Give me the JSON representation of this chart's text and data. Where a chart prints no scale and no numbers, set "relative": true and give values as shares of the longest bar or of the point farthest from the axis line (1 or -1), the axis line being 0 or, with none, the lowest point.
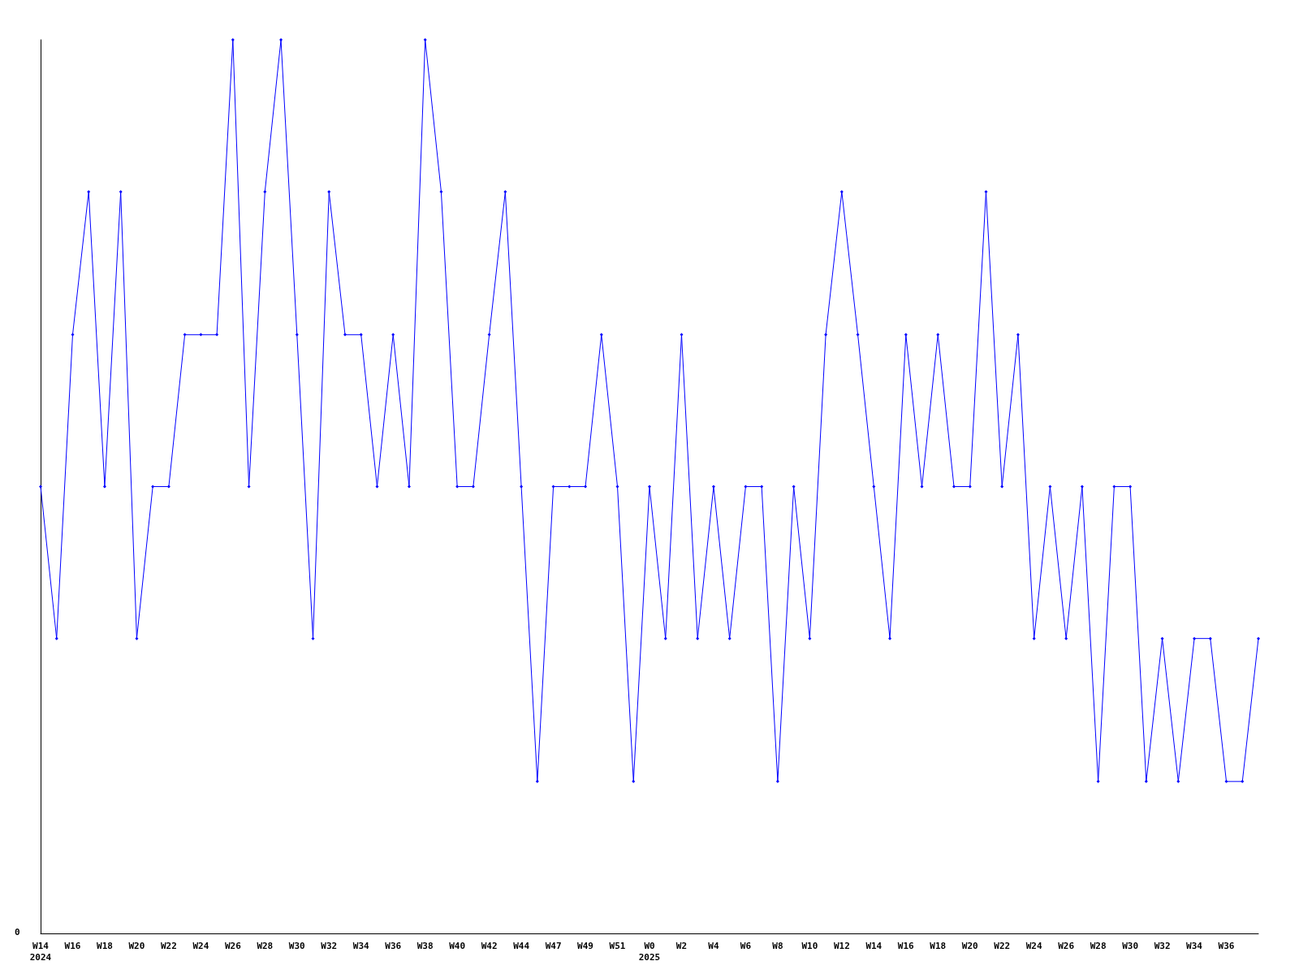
{
  "chart_data": {
    "type": "line",
    "relative": true,
    "marker": "diamond",
    "grid": false,
    "annotations": [
      "0"
    ],
    "categories": [
      "W14\n2024",
      null,
      "W16",
      null,
      "W18",
      null,
      "W20",
      null,
      "W22",
      null,
      "W24",
      null,
      "W26",
      null,
      "W28",
      null,
      "W30",
      null,
      "W32",
      null,
      "W34",
      null,
      "W36",
      null,
      "W38",
      null,
      "W40",
      null,
      "W42",
      null,
      "W44",
      null,
      "W47",
      null,
      "W49",
      null,
      "W51",
      null,
      "W0\n2025",
      null,
      "W2",
      null,
      "W4",
      null,
      "W6",
      null,
      "W8",
      null,
      "W10",
      null,
      "W12",
      null,
      "W14",
      null,
      "W16",
      null,
      "W18",
      null,
      "W20",
      null,
      "W22",
      null,
      "W24",
      null,
      "W26",
      null,
      "W28",
      null,
      "W30",
      null,
      "W32",
      null,
      "W34",
      null,
      "W36",
      null,
      null
    ],
    "series": [
      {
        "color": "#0000ff",
        "values": [
          0.5,
          0.33,
          0.67,
          0.83,
          0.5,
          0.83,
          0.33,
          0.5,
          0.5,
          0.67,
          0.67,
          0.67,
          1,
          0.5,
          0.83,
          1,
          0.67,
          0.33,
          0.83,
          0.67,
          0.67,
          0.5,
          0.67,
          0.5,
          1,
          0.83,
          0.5,
          0.5,
          0.67,
          0.83,
          0.5,
          0.17,
          0.5,
          0.5,
          0.5,
          0.67,
          0.5,
          0.17,
          0.5,
          0.33,
          0.67,
          0.33,
          0.5,
          0.33,
          0.5,
          0.5,
          0.17,
          0.5,
          0.33,
          0.67,
          0.83,
          0.67,
          0.5,
          0.33,
          0.67,
          0.5,
          0.67,
          0.5,
          0.5,
          0.83,
          0.5,
          0.67,
          0.33,
          0.5,
          0.33,
          0.5,
          0.17,
          0.5,
          0.5,
          0.17,
          0.33,
          0.17,
          0.33,
          0.33,
          0.17,
          0.17,
          0.33
        ]
      }
    ]
  }
}
